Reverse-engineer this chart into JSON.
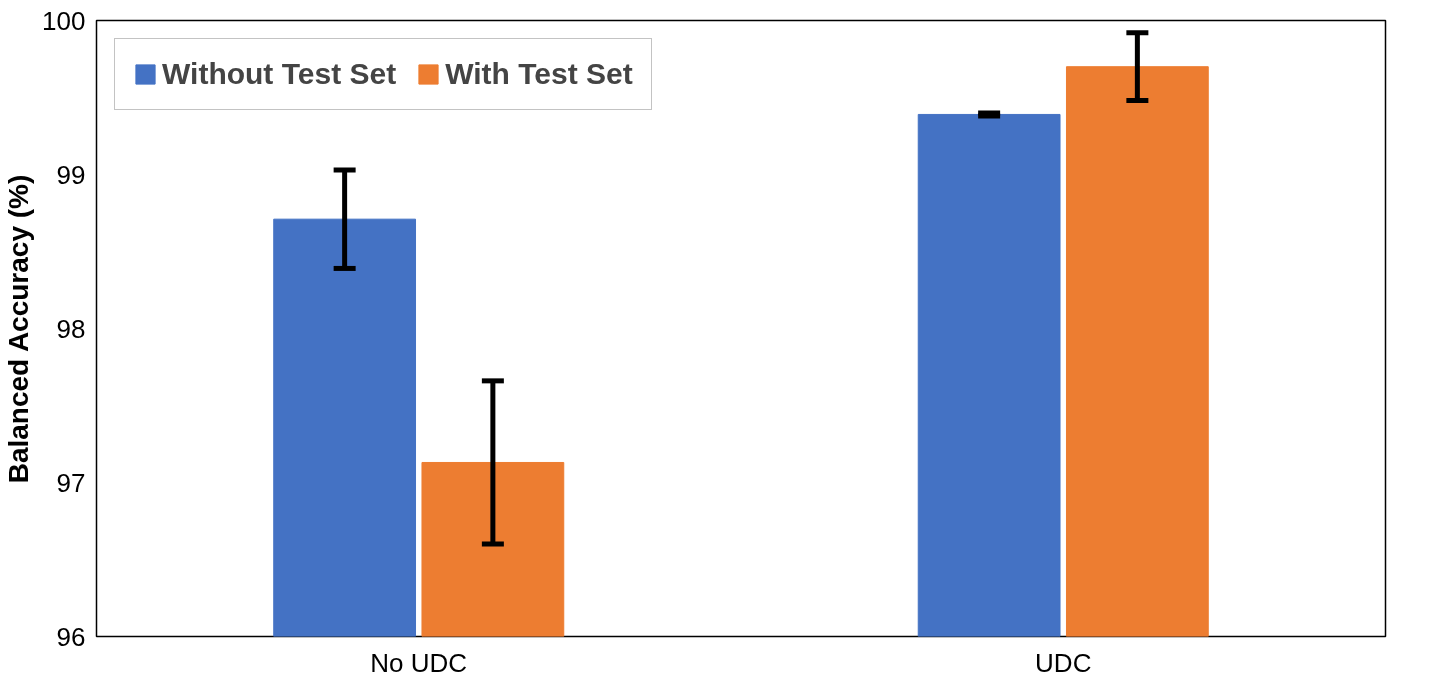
{
  "chart_data": {
    "type": "bar",
    "ylabel": "Balanced Accuracy (%)",
    "categories": [
      "No UDC",
      "UDC"
    ],
    "series": [
      {
        "name": "Without Test Set",
        "color": "#4472c4",
        "values": [
          98.71,
          99.39
        ],
        "errors": [
          0.32,
          0.01
        ]
      },
      {
        "name": "With Test Set",
        "color": "#ed7d31",
        "values": [
          97.13,
          99.7
        ],
        "errors": [
          0.53,
          0.22
        ]
      }
    ],
    "ylim": [
      96,
      100
    ],
    "yticks": [
      96,
      97,
      98,
      99,
      100
    ],
    "grid": false,
    "legend": "top left"
  }
}
